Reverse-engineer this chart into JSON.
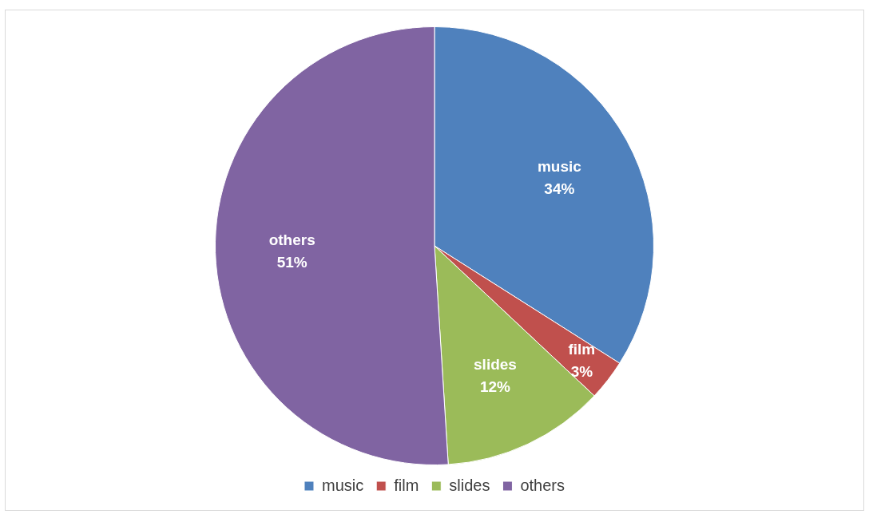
{
  "chart_data": {
    "type": "pie",
    "categories": [
      "music",
      "film",
      "slides",
      "others"
    ],
    "values": [
      34,
      3,
      12,
      51
    ],
    "colors": [
      "#4f81bd",
      "#c0504d",
      "#9bbb59",
      "#8064a2"
    ],
    "value_labels": [
      "34%",
      "3%",
      "12%",
      "51%"
    ],
    "legend": "bottom"
  }
}
